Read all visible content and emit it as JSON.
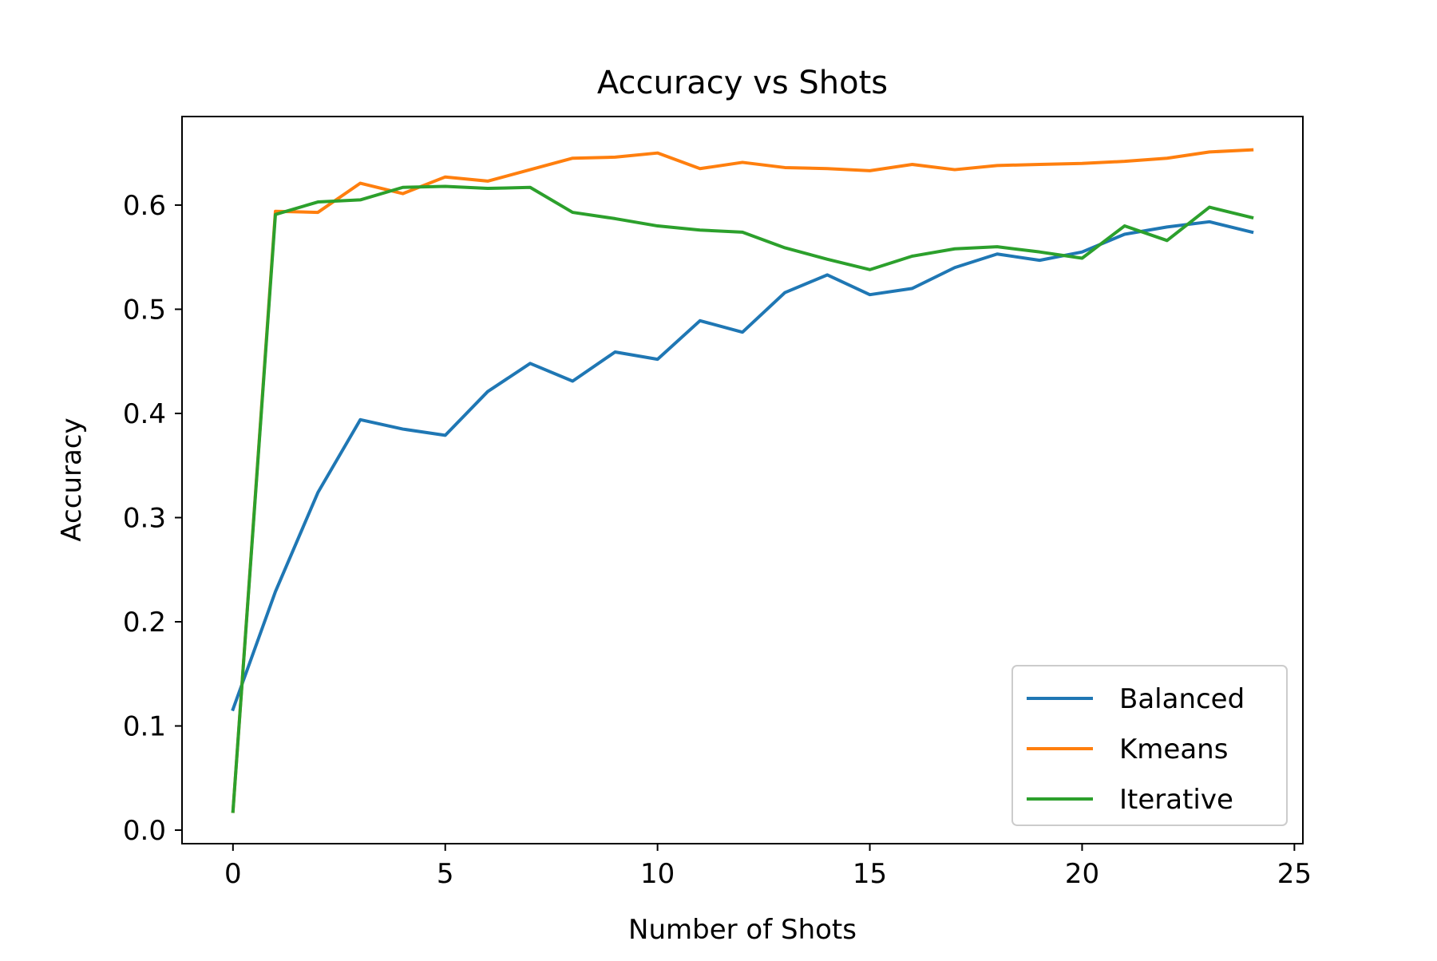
{
  "chart_data": {
    "type": "line",
    "title": "Accuracy vs Shots",
    "xlabel": "Number of Shots",
    "ylabel": "Accuracy",
    "xlim": [
      -1.2,
      25.2
    ],
    "ylim": [
      -0.013,
      0.685
    ],
    "xticks": [
      0,
      5,
      10,
      15,
      20,
      25
    ],
    "yticks": [
      0.0,
      0.1,
      0.2,
      0.3,
      0.4,
      0.5,
      0.6
    ],
    "xtick_labels": [
      "0",
      "5",
      "10",
      "15",
      "20",
      "25"
    ],
    "ytick_labels": [
      "0.0",
      "0.1",
      "0.2",
      "0.3",
      "0.4",
      "0.5",
      "0.6"
    ],
    "grid": false,
    "legend_position": "lower-right",
    "x": [
      0,
      1,
      2,
      3,
      4,
      5,
      6,
      7,
      8,
      9,
      10,
      11,
      12,
      13,
      14,
      15,
      16,
      17,
      18,
      19,
      20,
      21,
      22,
      23,
      24
    ],
    "series": [
      {
        "name": "Balanced",
        "color": "#1f77b4",
        "values": [
          0.116,
          0.229,
          0.324,
          0.394,
          0.385,
          0.379,
          0.421,
          0.448,
          0.431,
          0.459,
          0.452,
          0.489,
          0.478,
          0.516,
          0.533,
          0.514,
          0.52,
          0.54,
          0.553,
          0.547,
          0.555,
          0.572,
          0.579,
          0.584,
          0.574
        ]
      },
      {
        "name": "Kmeans",
        "color": "#ff7f0e",
        "values": [
          0.018,
          0.594,
          0.593,
          0.621,
          0.611,
          0.627,
          0.623,
          0.634,
          0.645,
          0.646,
          0.65,
          0.635,
          0.641,
          0.636,
          0.635,
          0.633,
          0.639,
          0.634,
          0.638,
          0.639,
          0.64,
          0.642,
          0.645,
          0.651,
          0.653
        ]
      },
      {
        "name": "Iterative",
        "color": "#2ca02c",
        "values": [
          0.018,
          0.591,
          0.603,
          0.605,
          0.617,
          0.618,
          0.616,
          0.617,
          0.593,
          0.587,
          0.58,
          0.576,
          0.574,
          0.559,
          0.548,
          0.538,
          0.551,
          0.558,
          0.56,
          0.555,
          0.549,
          0.58,
          0.566,
          0.598,
          0.588
        ]
      }
    ]
  }
}
